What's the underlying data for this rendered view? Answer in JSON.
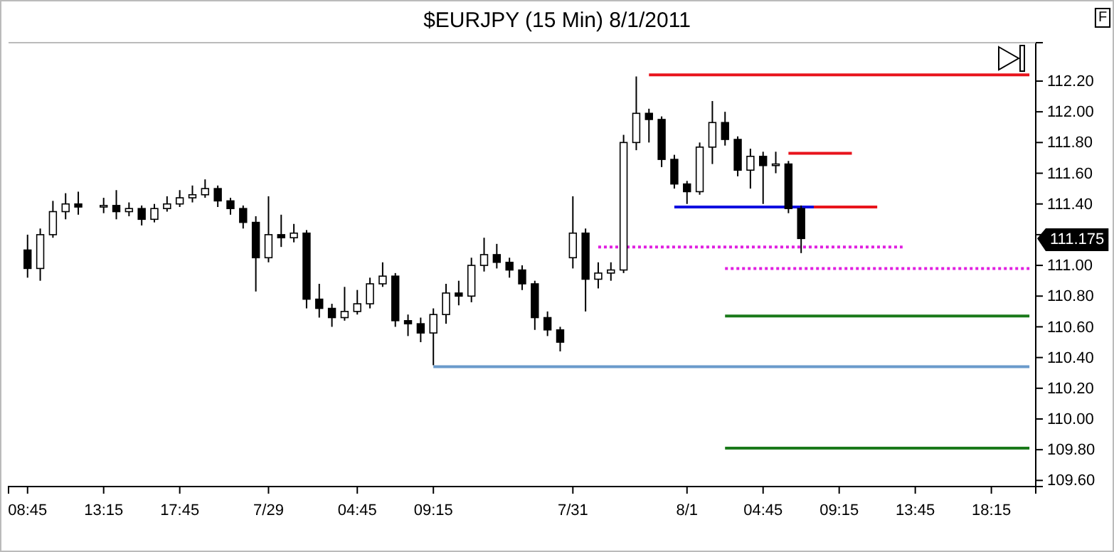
{
  "chart_data": {
    "type": "candlestick",
    "title": "$EURJPY (15 Min)  8/1/2011",
    "categories": [
      null,
      "08:45",
      null,
      null,
      null,
      null,
      null,
      "13:15",
      null,
      null,
      null,
      null,
      null,
      "17:45",
      null,
      null,
      null,
      null,
      null,
      null,
      "7/29",
      null,
      null,
      null,
      null,
      null,
      null,
      "04:45",
      null,
      null,
      null,
      null,
      null,
      "09:15",
      null,
      null,
      null,
      null,
      null,
      null,
      null,
      null,
      null,
      null,
      "7/31",
      null,
      null,
      null,
      null,
      null,
      null,
      null,
      null,
      "8/1",
      null,
      null,
      null,
      null,
      null,
      "04:45",
      null,
      null,
      null,
      null,
      null,
      "09:15",
      null,
      null,
      null,
      null,
      null,
      "13:45",
      null,
      null,
      null,
      null,
      null,
      "18:15",
      null,
      null,
      null
    ],
    "ohlc": [
      null,
      [
        111.1,
        111.2,
        110.92,
        110.98
      ],
      [
        110.98,
        111.24,
        110.9,
        111.2
      ],
      [
        111.2,
        111.42,
        111.18,
        111.35
      ],
      [
        111.35,
        111.47,
        111.3,
        111.4
      ],
      [
        111.4,
        111.48,
        111.33,
        111.38
      ],
      null,
      [
        111.38,
        111.44,
        111.34,
        111.39
      ],
      [
        111.39,
        111.49,
        111.3,
        111.35
      ],
      [
        111.35,
        111.41,
        111.32,
        111.37
      ],
      [
        111.37,
        111.39,
        111.26,
        111.3
      ],
      [
        111.3,
        111.4,
        111.28,
        111.37
      ],
      [
        111.37,
        111.45,
        111.35,
        111.4
      ],
      [
        111.4,
        111.49,
        111.38,
        111.44
      ],
      [
        111.44,
        111.52,
        111.41,
        111.46
      ],
      [
        111.46,
        111.56,
        111.44,
        111.5
      ],
      [
        111.5,
        111.52,
        111.38,
        111.42
      ],
      [
        111.42,
        111.44,
        111.33,
        111.37
      ],
      [
        111.37,
        111.39,
        111.24,
        111.28
      ],
      [
        111.28,
        111.32,
        110.83,
        111.05
      ],
      [
        111.05,
        111.45,
        111.02,
        111.2
      ],
      [
        111.2,
        111.33,
        111.12,
        111.18
      ],
      [
        111.18,
        111.27,
        111.15,
        111.21
      ],
      [
        111.21,
        111.23,
        110.72,
        110.78
      ],
      [
        110.78,
        110.88,
        110.66,
        110.72
      ],
      [
        110.72,
        110.75,
        110.6,
        110.66
      ],
      [
        110.66,
        110.86,
        110.64,
        110.7
      ],
      [
        110.7,
        110.84,
        110.68,
        110.75
      ],
      [
        110.75,
        110.92,
        110.72,
        110.88
      ],
      [
        110.88,
        111.02,
        110.86,
        110.93
      ],
      [
        110.93,
        110.95,
        110.6,
        110.64
      ],
      [
        110.64,
        110.68,
        110.54,
        110.62
      ],
      [
        110.62,
        110.66,
        110.5,
        110.56
      ],
      [
        110.56,
        110.72,
        110.35,
        110.68
      ],
      [
        110.68,
        110.88,
        110.62,
        110.82
      ],
      [
        110.82,
        110.9,
        110.74,
        110.8
      ],
      [
        110.8,
        111.05,
        110.76,
        111.0
      ],
      [
        111.0,
        111.18,
        110.96,
        111.07
      ],
      [
        111.07,
        111.14,
        110.98,
        111.02
      ],
      [
        111.02,
        111.05,
        110.92,
        110.97
      ],
      [
        110.97,
        111.0,
        110.84,
        110.88
      ],
      [
        110.88,
        110.9,
        110.58,
        110.66
      ],
      [
        110.66,
        110.7,
        110.54,
        110.58
      ],
      [
        110.58,
        110.6,
        110.44,
        110.5
      ],
      [
        111.05,
        111.45,
        110.98,
        111.21
      ],
      [
        111.21,
        111.24,
        110.7,
        110.91
      ],
      [
        110.91,
        111.02,
        110.85,
        110.95
      ],
      [
        110.95,
        111.02,
        110.9,
        110.97
      ],
      [
        110.97,
        111.85,
        110.95,
        111.8
      ],
      [
        111.8,
        112.23,
        111.75,
        111.99
      ],
      [
        111.99,
        112.02,
        111.8,
        111.95
      ],
      [
        111.95,
        111.97,
        111.64,
        111.69
      ],
      [
        111.69,
        111.72,
        111.5,
        111.53
      ],
      [
        111.53,
        111.55,
        111.4,
        111.48
      ],
      [
        111.48,
        111.8,
        111.46,
        111.77
      ],
      [
        111.77,
        112.07,
        111.66,
        111.93
      ],
      [
        111.93,
        112.0,
        111.78,
        111.82
      ],
      [
        111.82,
        111.84,
        111.58,
        111.62
      ],
      [
        111.62,
        111.76,
        111.5,
        111.71
      ],
      [
        111.71,
        111.74,
        111.4,
        111.65
      ],
      [
        111.65,
        111.74,
        111.6,
        111.66
      ],
      [
        111.66,
        111.68,
        111.34,
        111.37
      ],
      [
        111.37,
        111.39,
        111.08,
        111.175
      ],
      null,
      null,
      null,
      null,
      null,
      null,
      null,
      null,
      null,
      null,
      null,
      null,
      null,
      null,
      null,
      null,
      null,
      null
    ],
    "series": [
      {
        "type": "line",
        "color": "#e8141c",
        "values": [
          null,
          null,
          null,
          null,
          null,
          null,
          null,
          null,
          null,
          null,
          null,
          null,
          null,
          null,
          null,
          null,
          null,
          null,
          null,
          null,
          null,
          null,
          null,
          null,
          null,
          null,
          null,
          null,
          null,
          null,
          null,
          null,
          null,
          null,
          null,
          null,
          null,
          null,
          null,
          null,
          null,
          null,
          null,
          null,
          null,
          null,
          null,
          null,
          null,
          null,
          112.24,
          112.24,
          112.24,
          112.24,
          112.24,
          112.24,
          112.24,
          112.24,
          112.24,
          112.24,
          112.24,
          112.24,
          112.24,
          112.24,
          112.24,
          112.24,
          112.24,
          112.24,
          112.24,
          112.24,
          112.24,
          112.24,
          112.24,
          112.24,
          112.24,
          112.24,
          112.24,
          112.24,
          112.24,
          112.24,
          112.24
        ]
      },
      {
        "type": "line",
        "color": "#e8141c",
        "values": [
          null,
          null,
          null,
          null,
          null,
          null,
          null,
          null,
          null,
          null,
          null,
          null,
          null,
          null,
          null,
          null,
          null,
          null,
          null,
          null,
          null,
          null,
          null,
          null,
          null,
          null,
          null,
          null,
          null,
          null,
          null,
          null,
          null,
          null,
          null,
          null,
          null,
          null,
          null,
          null,
          null,
          null,
          null,
          null,
          null,
          null,
          null,
          null,
          null,
          null,
          null,
          null,
          null,
          null,
          null,
          null,
          null,
          null,
          null,
          null,
          null,
          111.73,
          111.73,
          111.73,
          111.73,
          111.73,
          111.73,
          null,
          null,
          null,
          null,
          null,
          null,
          null,
          null,
          null,
          null,
          null,
          null,
          null,
          null
        ]
      },
      {
        "type": "line",
        "color": "#1010e0",
        "values": [
          null,
          null,
          null,
          null,
          null,
          null,
          null,
          null,
          null,
          null,
          null,
          null,
          null,
          null,
          null,
          null,
          null,
          null,
          null,
          null,
          null,
          null,
          null,
          null,
          null,
          null,
          null,
          null,
          null,
          null,
          null,
          null,
          null,
          null,
          null,
          null,
          null,
          null,
          null,
          null,
          null,
          null,
          null,
          null,
          null,
          null,
          null,
          null,
          null,
          null,
          null,
          null,
          111.38,
          111.38,
          111.38,
          111.38,
          111.38,
          111.38,
          111.38,
          111.38,
          111.38,
          111.38,
          111.38,
          111.38,
          null,
          null,
          null,
          null,
          null,
          null,
          null,
          null,
          null,
          null,
          null,
          null,
          null,
          null,
          null,
          null,
          null
        ]
      },
      {
        "type": "line",
        "color": "#e8141c",
        "values": [
          null,
          null,
          null,
          null,
          null,
          null,
          null,
          null,
          null,
          null,
          null,
          null,
          null,
          null,
          null,
          null,
          null,
          null,
          null,
          null,
          null,
          null,
          null,
          null,
          null,
          null,
          null,
          null,
          null,
          null,
          null,
          null,
          null,
          null,
          null,
          null,
          null,
          null,
          null,
          null,
          null,
          null,
          null,
          null,
          null,
          null,
          null,
          null,
          null,
          null,
          null,
          null,
          null,
          null,
          null,
          null,
          null,
          null,
          null,
          null,
          null,
          null,
          null,
          111.38,
          111.38,
          111.38,
          111.38,
          111.38,
          111.38,
          null,
          null,
          null,
          null,
          null,
          null,
          null,
          null,
          null,
          null,
          null,
          null
        ]
      },
      {
        "type": "line",
        "color": "#e020e0",
        "line_style": "dotted",
        "values": [
          null,
          null,
          null,
          null,
          null,
          null,
          null,
          null,
          null,
          null,
          null,
          null,
          null,
          null,
          null,
          null,
          null,
          null,
          null,
          null,
          null,
          null,
          null,
          null,
          null,
          null,
          null,
          null,
          null,
          null,
          null,
          null,
          null,
          null,
          null,
          null,
          null,
          null,
          null,
          null,
          null,
          null,
          null,
          null,
          null,
          null,
          111.12,
          111.12,
          111.12,
          111.12,
          111.12,
          111.12,
          111.12,
          111.12,
          111.12,
          111.12,
          111.12,
          111.12,
          111.12,
          111.12,
          111.12,
          111.12,
          111.12,
          111.12,
          111.12,
          111.12,
          111.12,
          111.12,
          111.12,
          111.12,
          111.12,
          null,
          null,
          null,
          null,
          null,
          null,
          null,
          null,
          null,
          null
        ]
      },
      {
        "type": "line",
        "color": "#e020e0",
        "line_style": "dotted",
        "values": [
          null,
          null,
          null,
          null,
          null,
          null,
          null,
          null,
          null,
          null,
          null,
          null,
          null,
          null,
          null,
          null,
          null,
          null,
          null,
          null,
          null,
          null,
          null,
          null,
          null,
          null,
          null,
          null,
          null,
          null,
          null,
          null,
          null,
          null,
          null,
          null,
          null,
          null,
          null,
          null,
          null,
          null,
          null,
          null,
          null,
          null,
          null,
          null,
          null,
          null,
          null,
          null,
          null,
          null,
          null,
          null,
          110.98,
          110.98,
          110.98,
          110.98,
          110.98,
          110.98,
          110.98,
          110.98,
          110.98,
          110.98,
          110.98,
          110.98,
          110.98,
          110.98,
          110.98,
          110.98,
          110.98,
          110.98,
          110.98,
          110.98,
          110.98,
          110.98,
          110.98,
          110.98,
          110.98
        ]
      },
      {
        "type": "line",
        "color": "#1a7a1a",
        "values": [
          null,
          null,
          null,
          null,
          null,
          null,
          null,
          null,
          null,
          null,
          null,
          null,
          null,
          null,
          null,
          null,
          null,
          null,
          null,
          null,
          null,
          null,
          null,
          null,
          null,
          null,
          null,
          null,
          null,
          null,
          null,
          null,
          null,
          null,
          null,
          null,
          null,
          null,
          null,
          null,
          null,
          null,
          null,
          null,
          null,
          null,
          null,
          null,
          null,
          null,
          null,
          null,
          null,
          null,
          null,
          null,
          110.67,
          110.67,
          110.67,
          110.67,
          110.67,
          110.67,
          110.67,
          110.67,
          110.67,
          110.67,
          110.67,
          110.67,
          110.67,
          110.67,
          110.67,
          110.67,
          110.67,
          110.67,
          110.67,
          110.67,
          110.67,
          110.67,
          110.67,
          110.67,
          110.67
        ]
      },
      {
        "type": "line",
        "color": "#6a9acb",
        "values": [
          null,
          null,
          null,
          null,
          null,
          null,
          null,
          null,
          null,
          null,
          null,
          null,
          null,
          null,
          null,
          null,
          null,
          null,
          null,
          null,
          null,
          null,
          null,
          null,
          null,
          null,
          null,
          null,
          null,
          null,
          null,
          null,
          null,
          110.34,
          110.34,
          110.34,
          110.34,
          110.34,
          110.34,
          110.34,
          110.34,
          110.34,
          110.34,
          110.34,
          110.34,
          110.34,
          110.34,
          110.34,
          110.34,
          110.34,
          110.34,
          110.34,
          110.34,
          110.34,
          110.34,
          110.34,
          110.34,
          110.34,
          110.34,
          110.34,
          110.34,
          110.34,
          110.34,
          110.34,
          110.34,
          110.34,
          110.34,
          110.34,
          110.34,
          110.34,
          110.34,
          110.34,
          110.34,
          110.34,
          110.34,
          110.34,
          110.34,
          110.34,
          110.34,
          110.34,
          110.34
        ]
      },
      {
        "type": "line",
        "color": "#1a7a1a",
        "values": [
          null,
          null,
          null,
          null,
          null,
          null,
          null,
          null,
          null,
          null,
          null,
          null,
          null,
          null,
          null,
          null,
          null,
          null,
          null,
          null,
          null,
          null,
          null,
          null,
          null,
          null,
          null,
          null,
          null,
          null,
          null,
          null,
          null,
          null,
          null,
          null,
          null,
          null,
          null,
          null,
          null,
          null,
          null,
          null,
          null,
          null,
          null,
          null,
          null,
          null,
          null,
          null,
          null,
          null,
          null,
          null,
          109.81,
          109.81,
          109.81,
          109.81,
          109.81,
          109.81,
          109.81,
          109.81,
          109.81,
          109.81,
          109.81,
          109.81,
          109.81,
          109.81,
          109.81,
          109.81,
          109.81,
          109.81,
          109.81,
          109.81,
          109.81,
          109.81,
          109.81,
          109.81,
          109.81
        ]
      }
    ],
    "ylim": [
      109.56,
      112.45
    ],
    "yticks": [
      {
        "value": 109.6,
        "label": "109.60"
      },
      {
        "value": 109.8,
        "label": "109.80"
      },
      {
        "value": 110,
        "label": "110.00"
      },
      {
        "value": 110.2,
        "label": "110.20"
      },
      {
        "value": 110.4,
        "label": "110.40"
      },
      {
        "value": 110.6,
        "label": "110.60"
      },
      {
        "value": 110.8,
        "label": "110.80"
      },
      {
        "value": 111,
        "label": "111.00"
      },
      {
        "value": 111.2,
        "label": null
      },
      {
        "value": 111.4,
        "label": "111.40"
      },
      {
        "value": 111.6,
        "label": "111.60"
      },
      {
        "value": 111.8,
        "label": "111.80"
      },
      {
        "value": 112,
        "label": "112.00"
      },
      {
        "value": 112.2,
        "label": "112.20"
      }
    ],
    "annotations": [
      "F",
      "111.175"
    ]
  }
}
